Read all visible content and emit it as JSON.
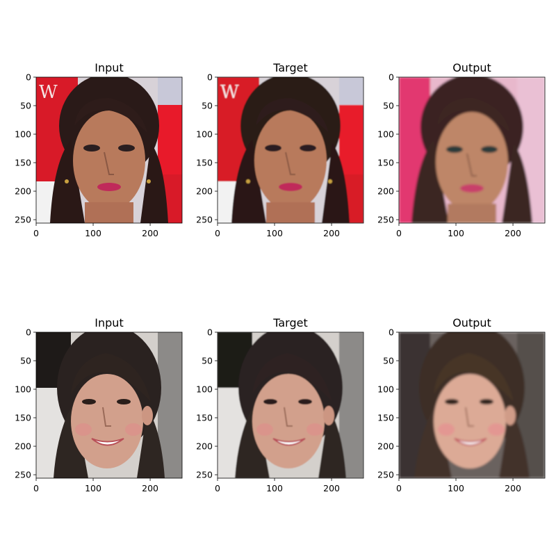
{
  "figure": {
    "panels": [
      {
        "title": "Input",
        "image": "face-woman-dark-hair-red-background",
        "style": "sharp"
      },
      {
        "title": "Target",
        "image": "face-woman-dark-hair-red-background",
        "style": "soft"
      },
      {
        "title": "Output",
        "image": "face-woman-dark-hair-pink-background",
        "style": "generated"
      },
      {
        "title": "Input",
        "image": "face-girl-smiling-dark-hair-grey-background",
        "style": "sharp"
      },
      {
        "title": "Target",
        "image": "face-girl-smiling-dark-hair-grey-background",
        "style": "soft"
      },
      {
        "title": "Output",
        "image": "face-girl-smiling-dark-hair-dark-background",
        "style": "generated"
      }
    ],
    "x_ticks": [
      "0",
      "100",
      "200"
    ],
    "y_ticks": [
      "0",
      "50",
      "100",
      "150",
      "200",
      "250"
    ],
    "axis_range": [
      0,
      256
    ]
  }
}
